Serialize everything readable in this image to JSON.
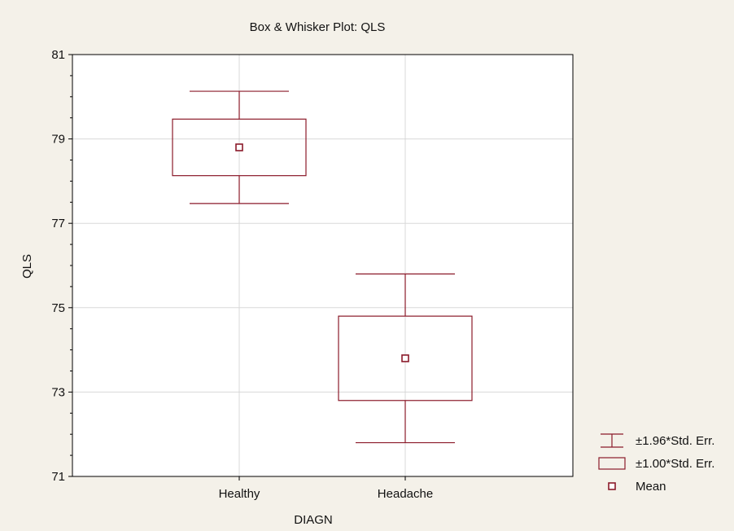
{
  "chart_data": {
    "type": "box",
    "title": "Box & Whisker Plot: QLS",
    "xlabel": "DIAGN",
    "ylabel": "QLS",
    "ylim": [
      71,
      81
    ],
    "yticks": [
      71,
      73,
      75,
      77,
      79,
      81
    ],
    "grid": true,
    "categories": [
      "Healthy",
      "Headache"
    ],
    "series": [
      {
        "category": "Healthy",
        "mean": 78.8,
        "box": [
          78.13,
          79.47
        ],
        "whisker": [
          77.47,
          80.13
        ]
      },
      {
        "category": "Headache",
        "mean": 73.8,
        "box": [
          72.8,
          74.8
        ],
        "whisker": [
          71.8,
          75.8
        ]
      }
    ],
    "legend": {
      "placement": "bottom-right",
      "items": [
        {
          "symbol": "whisker",
          "label": "±1.96*Std. Err."
        },
        {
          "symbol": "box",
          "label": "±1.00*Std. Err."
        },
        {
          "symbol": "mean-marker",
          "label": "Mean"
        }
      ]
    },
    "colors": {
      "stroke": "#8b1a2a",
      "grid": "#d8d8d8",
      "plot_bg": "#ffffff",
      "page_bg": "#f4f1e9"
    }
  }
}
